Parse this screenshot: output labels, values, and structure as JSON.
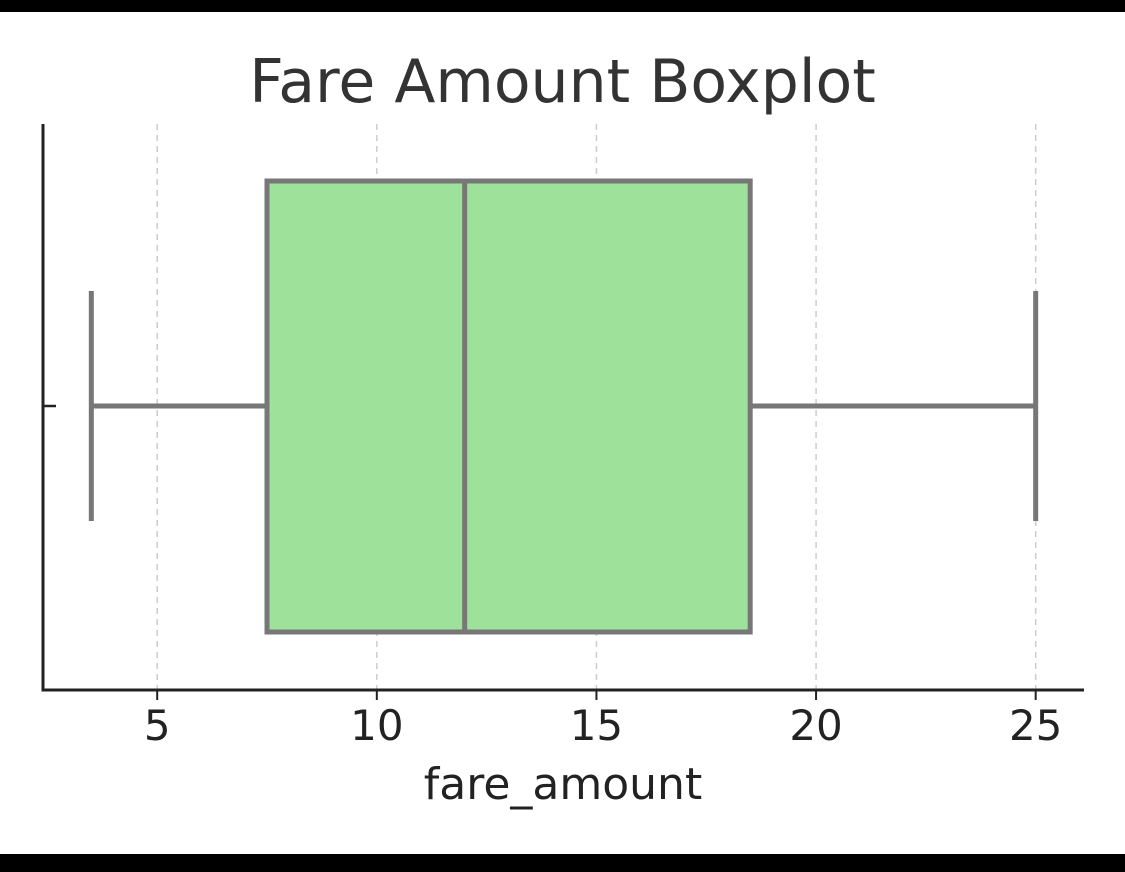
{
  "chart_data": {
    "type": "box",
    "title": "Fare Amount Boxplot",
    "xlabel": "fare_amount",
    "ylabel": "",
    "xlim": [
      2.4,
      26.1
    ],
    "x_ticks": [
      5,
      10,
      15,
      20,
      25
    ],
    "orientation": "horizontal",
    "grid": "vertical dashed",
    "box": {
      "whisker_low": 3.5,
      "q1": 7.5,
      "median": 12.0,
      "q3": 18.5,
      "whisker_high": 25.0
    },
    "colors": {
      "box_fill": "#9de19a",
      "box_edge": "#777777",
      "grid": "#cccccc",
      "axis": "#222222"
    }
  }
}
